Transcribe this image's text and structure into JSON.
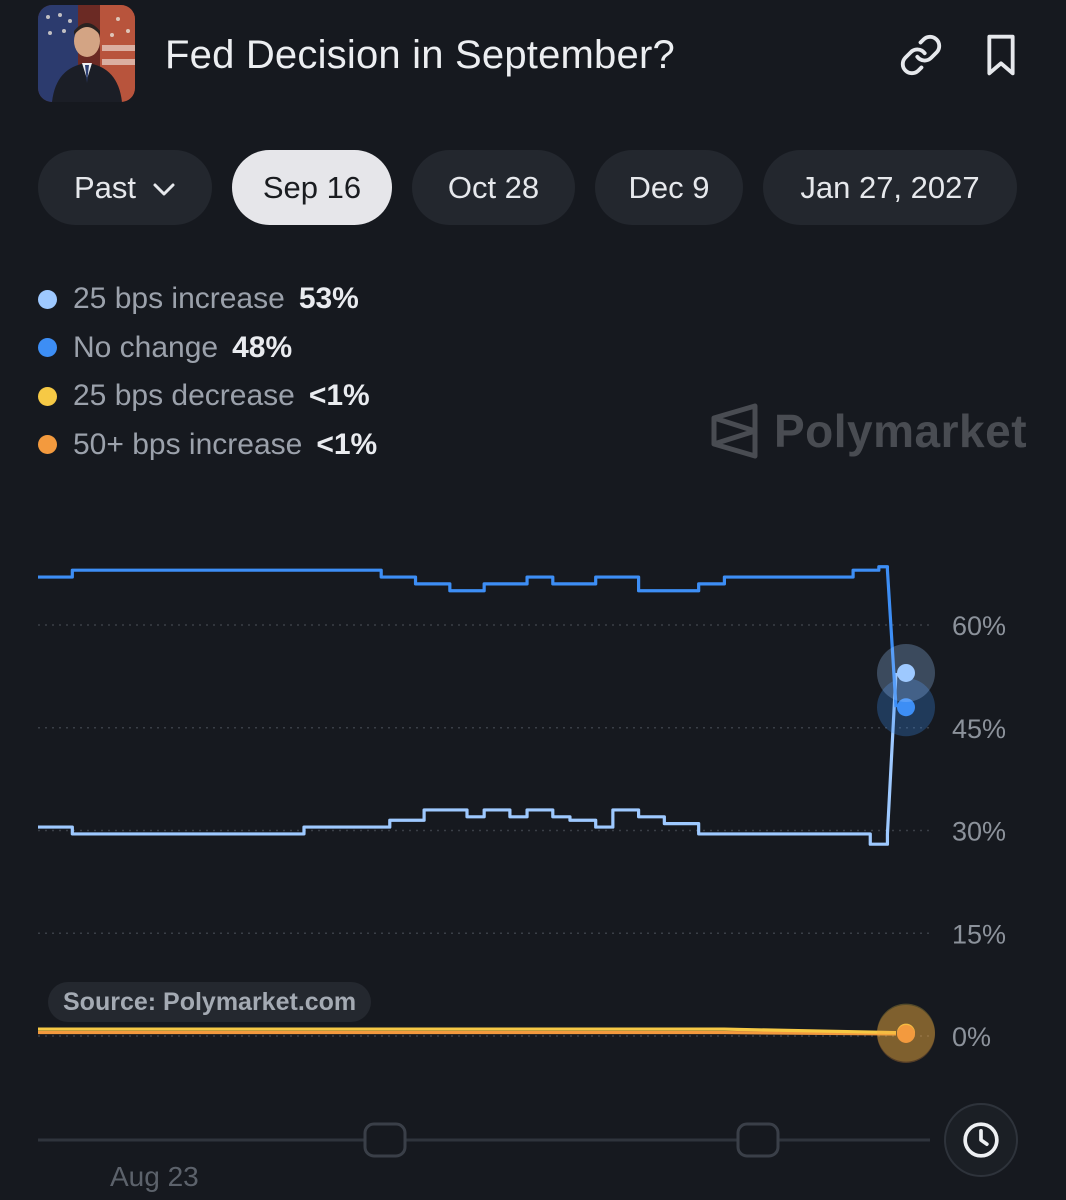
{
  "header": {
    "title": "Fed Decision in September?",
    "icons": [
      "avatar-photo",
      "link-icon",
      "bookmark-icon"
    ]
  },
  "tabs": [
    {
      "label": "Past",
      "has_dropdown": true,
      "active": false
    },
    {
      "label": "Sep 16",
      "active": true
    },
    {
      "label": "Oct 28",
      "active": false
    },
    {
      "label": "Dec 9",
      "active": false
    },
    {
      "label": "Jan 27, 2027",
      "active": false
    }
  ],
  "legend": [
    {
      "label": "25 bps increase",
      "value": "53%",
      "color": "#9ec9ff"
    },
    {
      "label": "No change",
      "value": "48%",
      "color": "#3d8ef5"
    },
    {
      "label": "25 bps decrease",
      "value": "<1%",
      "color": "#f6c945"
    },
    {
      "label": "50+ bps increase",
      "value": "<1%",
      "color": "#f39a3e"
    }
  ],
  "watermark": "Polymarket",
  "source": "Source: Polymarket.com",
  "chart_data": {
    "type": "line",
    "x_tick_labels": [
      "Aug 23"
    ],
    "y_ticks": [
      0,
      15,
      30,
      45,
      60
    ],
    "y_tick_labels": [
      "0%",
      "15%",
      "30%",
      "45%",
      "60%"
    ],
    "ylim": [
      0,
      72
    ],
    "grid": "dotted horizontal",
    "legend_position": "top-left",
    "series": [
      {
        "name": "No change",
        "color": "#3d8ef5",
        "x": [
          0,
          1,
          4,
          5,
          10,
          20,
          30,
          40,
          41,
          44,
          45,
          48,
          50,
          52,
          55,
          57,
          60,
          62,
          65,
          67,
          70,
          73,
          77,
          80,
          85,
          90,
          95,
          98,
          99,
          100
        ],
        "y": [
          67,
          67,
          68,
          68,
          68,
          68,
          68,
          67,
          67,
          66,
          66,
          65,
          65,
          66,
          66,
          67,
          66,
          66,
          67,
          67,
          65,
          65,
          66,
          67,
          67,
          67,
          68,
          68.5,
          68,
          48
        ]
      },
      {
        "name": "25 bps increase",
        "color": "#9ec9ff",
        "x": [
          0,
          1,
          4,
          5,
          10,
          20,
          30,
          31,
          40,
          41,
          44,
          45,
          48,
          50,
          52,
          55,
          57,
          60,
          62,
          65,
          67,
          70,
          73,
          77,
          80,
          85,
          90,
          95,
          97,
          98,
          99,
          100
        ],
        "y": [
          30.5,
          30.5,
          29.5,
          29.5,
          29.5,
          29.5,
          29.5,
          30.5,
          30.5,
          31.5,
          31.5,
          33,
          33,
          32,
          33,
          32,
          33,
          32,
          31.5,
          30.5,
          33,
          32,
          31,
          29.5,
          29.5,
          29.5,
          29.5,
          29.5,
          28,
          28,
          29.5,
          53
        ]
      },
      {
        "name": "25 bps decrease",
        "color": "#f6c945",
        "x": [
          0,
          20,
          40,
          60,
          80,
          100
        ],
        "y": [
          1,
          1,
          1,
          1,
          1,
          0.5
        ]
      },
      {
        "name": "50+ bps increase",
        "color": "#f39a3e",
        "x": [
          0,
          20,
          40,
          60,
          80,
          100
        ],
        "y": [
          0.5,
          0.5,
          0.5,
          0.5,
          0.5,
          0.3
        ]
      }
    ]
  }
}
